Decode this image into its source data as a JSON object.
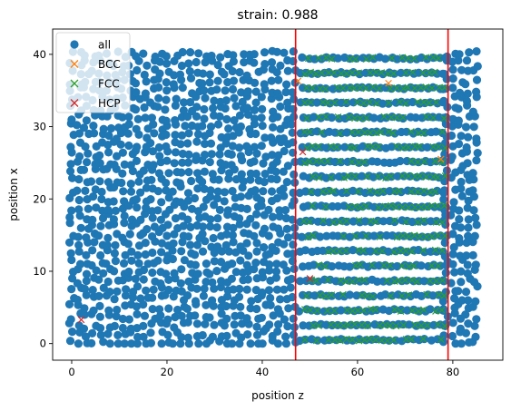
{
  "chart_data": {
    "type": "scatter",
    "title": "strain: 0.988",
    "xlabel": "position z",
    "ylabel": "position x",
    "xlim": [
      -4,
      90.5
    ],
    "ylim": [
      -2.3,
      43.5
    ],
    "xticks": [
      0,
      20,
      40,
      60,
      80
    ],
    "yticks": [
      0,
      10,
      20,
      30,
      40
    ],
    "grid": false,
    "legend": "top-left",
    "series": [
      {
        "name": "all",
        "marker": "o",
        "color": "#1f77b4",
        "regions": [
          {
            "kind": "disordered",
            "z": [
              0,
              47
            ],
            "x": [
              0,
              40.8
            ]
          },
          {
            "kind": "disordered",
            "z": [
              78.5,
              86
            ],
            "x": [
              0,
              40.8
            ]
          },
          {
            "kind": "layered",
            "z": [
              47,
              78.5
            ],
            "x": [
              0.5,
              40.5
            ]
          }
        ]
      },
      {
        "name": "BCC",
        "marker": "x",
        "color": "#ff7f0e",
        "points": [
          [
            66.5,
            36
          ],
          [
            47.5,
            36.3
          ],
          [
            77.5,
            25.5
          ]
        ]
      },
      {
        "name": "FCC",
        "marker": "x",
        "color": "#2ca02c",
        "region": {
          "z": [
            48,
            78.5
          ],
          "x": [
            0.5,
            40.5
          ]
        }
      },
      {
        "name": "HCP",
        "marker": "x",
        "color": "#d62728",
        "points": [
          [
            2,
            3.3
          ],
          [
            50,
            9
          ],
          [
            48.5,
            26.5
          ]
        ]
      }
    ],
    "vlines": [
      {
        "x": 47,
        "color": "#ff0000"
      },
      {
        "x": 79,
        "color": "#ff0000"
      }
    ]
  }
}
